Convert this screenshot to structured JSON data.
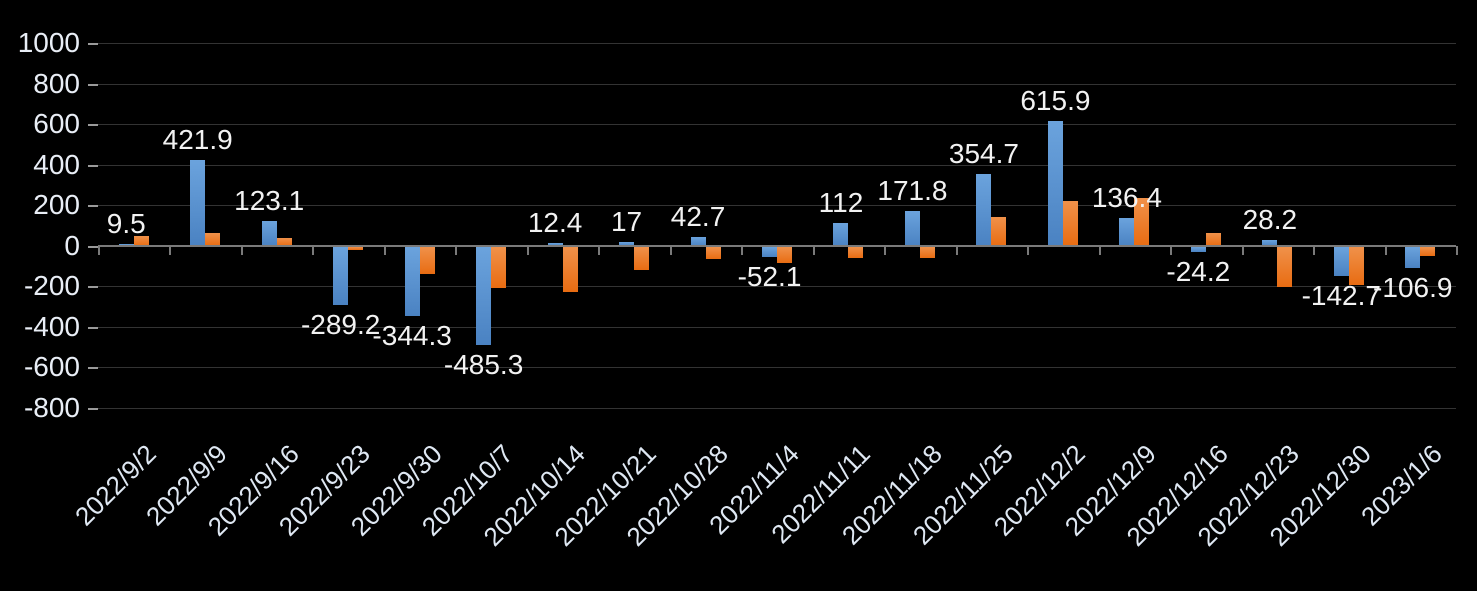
{
  "chart_data": {
    "type": "bar",
    "title": "",
    "legend": "none",
    "grid": true,
    "background_color": "#000000",
    "gridline_color": "#333333",
    "axis_color": "#7a7a7a",
    "axis_text_color": "#e9eef6",
    "data_label_color": "#f2f2f2",
    "categories": [
      "2022/9/2",
      "2022/9/9",
      "2022/9/16",
      "2022/9/23",
      "2022/9/30",
      "2022/10/7",
      "2022/10/14",
      "2022/10/21",
      "2022/10/28",
      "2022/11/4",
      "2022/11/11",
      "2022/11/18",
      "2022/11/25",
      "2022/12/2",
      "2022/12/9",
      "2022/12/16",
      "2022/12/23",
      "2022/12/30",
      "2023/1/6"
    ],
    "series": [
      {
        "name": "blue-series",
        "fill": [
          "#6ba3dd",
          "#4a82c2"
        ],
        "values": [
          9.5,
          421.9,
          123.1,
          -289.2,
          -344.3,
          -485.3,
          12.4,
          17,
          42.7,
          -52.1,
          112,
          171.8,
          354.7,
          615.9,
          136.4,
          -24.2,
          28.2,
          -142.7,
          -106.9
        ],
        "data_labels": [
          "9.5",
          "421.9",
          "123.1",
          "-289.2",
          "-344.3",
          "-485.3",
          "12.4",
          "17",
          "42.7",
          "-52.1",
          "112",
          "171.8",
          "354.7",
          "615.9",
          "136.4",
          "-24.2",
          "28.2",
          "-142.7",
          "-106.9"
        ]
      },
      {
        "name": "orange-series",
        "fill": [
          "#f0914a",
          "#e86c12"
        ],
        "values": [
          50,
          62,
          36,
          -15,
          -135,
          -205,
          -225,
          -115,
          -60,
          -82,
          -55,
          -57,
          140,
          222,
          236,
          64,
          -200,
          -190,
          -46
        ],
        "data_labels": []
      }
    ],
    "xlabel": "",
    "ylabel": "",
    "y_axis": {
      "min": -800,
      "max": 1000,
      "step": 200,
      "ticks": [
        1000,
        800,
        600,
        400,
        200,
        0,
        -200,
        -400,
        -600,
        -800
      ]
    }
  }
}
